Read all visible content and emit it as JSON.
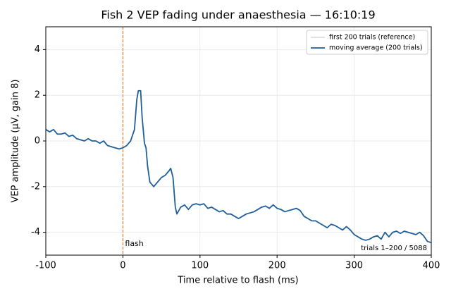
{
  "chart_data": {
    "type": "line",
    "title": "Fish 2 VEP fading under anaesthesia — 16:10:19",
    "x_label": "Time relative to flash (ms)",
    "y_label": "VEP amplitude (µV, gain 8)",
    "x": [
      -100,
      -95,
      -90,
      -85,
      -80,
      -75,
      -70,
      -65,
      -60,
      -55,
      -50,
      -45,
      -40,
      -35,
      -30,
      -25,
      -20,
      -15,
      -10,
      -5,
      0,
      5,
      10,
      15,
      18,
      20,
      23,
      25,
      28,
      30,
      32,
      35,
      40,
      45,
      50,
      55,
      60,
      62,
      65,
      68,
      70,
      75,
      80,
      85,
      90,
      95,
      100,
      105,
      110,
      115,
      120,
      125,
      130,
      135,
      140,
      145,
      150,
      155,
      160,
      165,
      170,
      175,
      180,
      185,
      190,
      195,
      200,
      205,
      210,
      215,
      220,
      225,
      230,
      235,
      240,
      245,
      250,
      255,
      260,
      265,
      270,
      275,
      280,
      285,
      290,
      295,
      300,
      305,
      310,
      315,
      320,
      325,
      330,
      335,
      340,
      345,
      350,
      355,
      360,
      365,
      370,
      375,
      380,
      385,
      390,
      395,
      400
    ],
    "series": [
      {
        "name": "first 200 trials (reference)",
        "color": "#b0b0b0",
        "width": 0.8,
        "values": [
          0.5,
          0.4,
          0.5,
          0.3,
          0.3,
          0.35,
          0.2,
          0.25,
          0.1,
          0.05,
          0.0,
          0.1,
          0.0,
          0.0,
          -0.1,
          0.0,
          -0.2,
          -0.25,
          -0.3,
          -0.35,
          -0.3,
          -0.2,
          0.0,
          0.5,
          1.8,
          2.2,
          2.2,
          1.0,
          -0.1,
          -0.3,
          -1.1,
          -1.8,
          -2.0,
          -1.8,
          -1.6,
          -1.5,
          -1.3,
          -1.2,
          -1.6,
          -2.9,
          -3.2,
          -2.9,
          -2.8,
          -3.0,
          -2.8,
          -2.75,
          -2.8,
          -2.75,
          -2.95,
          -2.9,
          -3.0,
          -3.1,
          -3.05,
          -3.2,
          -3.2,
          -3.3,
          -3.4,
          -3.3,
          -3.2,
          -3.15,
          -3.1,
          -3.0,
          -2.9,
          -2.85,
          -2.95,
          -2.8,
          -2.95,
          -3.0,
          -3.1,
          -3.05,
          -3.0,
          -2.95,
          -3.05,
          -3.3,
          -3.4,
          -3.5,
          -3.5,
          -3.6,
          -3.7,
          -3.8,
          -3.65,
          -3.7,
          -3.8,
          -3.9,
          -3.75,
          -3.9,
          -4.1,
          -4.2,
          -4.3,
          -4.35,
          -4.3,
          -4.2,
          -4.15,
          -4.3,
          -4.0,
          -4.2,
          -4.0,
          -3.95,
          -4.05,
          -3.95,
          -4.0,
          -4.05,
          -4.1,
          -4.0,
          -4.15,
          -4.4,
          -4.45
        ]
      },
      {
        "name": "moving average (200 trials)",
        "color": "#1f5f9a",
        "width": 1.8,
        "values": [
          0.5,
          0.4,
          0.5,
          0.3,
          0.3,
          0.35,
          0.2,
          0.25,
          0.1,
          0.05,
          0.0,
          0.1,
          0.0,
          0.0,
          -0.1,
          0.0,
          -0.2,
          -0.25,
          -0.3,
          -0.35,
          -0.3,
          -0.2,
          0.0,
          0.5,
          1.8,
          2.2,
          2.2,
          1.0,
          -0.1,
          -0.3,
          -1.1,
          -1.8,
          -2.0,
          -1.8,
          -1.6,
          -1.5,
          -1.3,
          -1.2,
          -1.6,
          -2.9,
          -3.2,
          -2.9,
          -2.8,
          -3.0,
          -2.8,
          -2.75,
          -2.8,
          -2.75,
          -2.95,
          -2.9,
          -3.0,
          -3.1,
          -3.05,
          -3.2,
          -3.2,
          -3.3,
          -3.4,
          -3.3,
          -3.2,
          -3.15,
          -3.1,
          -3.0,
          -2.9,
          -2.85,
          -2.95,
          -2.8,
          -2.95,
          -3.0,
          -3.1,
          -3.05,
          -3.0,
          -2.95,
          -3.05,
          -3.3,
          -3.4,
          -3.5,
          -3.5,
          -3.6,
          -3.7,
          -3.8,
          -3.65,
          -3.7,
          -3.8,
          -3.9,
          -3.75,
          -3.9,
          -4.1,
          -4.2,
          -4.3,
          -4.35,
          -4.3,
          -4.2,
          -4.15,
          -4.3,
          -4.0,
          -4.2,
          -4.0,
          -3.95,
          -4.05,
          -3.95,
          -4.0,
          -4.05,
          -4.1,
          -4.0,
          -4.15,
          -4.4,
          -4.45
        ]
      }
    ],
    "xlim": [
      -100,
      400
    ],
    "xticks": [
      -100,
      0,
      100,
      200,
      300,
      400
    ],
    "ylim": [
      -5,
      5
    ],
    "yticks": [
      -4,
      -2,
      0,
      2,
      4
    ],
    "grid": true,
    "legend": "upper right",
    "vline": {
      "x": 0,
      "label": "flash",
      "color": "#d9822b"
    },
    "note": "trials 1–200 / 5088"
  }
}
